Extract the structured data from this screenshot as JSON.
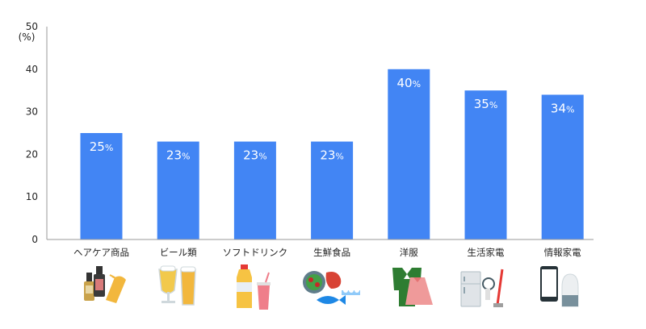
{
  "chart_data": {
    "type": "bar",
    "title": "",
    "xlabel": "",
    "ylabel": "(%)",
    "ylim": [
      0,
      50
    ],
    "yticks": [
      0,
      10,
      20,
      30,
      40,
      50
    ],
    "grid": false,
    "categories": [
      "ヘアケア商品",
      "ビール類",
      "ソフトドリンク",
      "生鮮食品",
      "洋服",
      "生活家電",
      "情報家電"
    ],
    "values": [
      25,
      23,
      23,
      23,
      40,
      35,
      34
    ],
    "value_suffix": "%",
    "bar_color": "#4285F4",
    "icons": [
      "hair-care-products-icon",
      "beer-glasses-icon",
      "soft-drinks-icon",
      "fresh-food-icon",
      "clothing-icon",
      "home-appliances-icon",
      "smart-devices-icon"
    ]
  }
}
